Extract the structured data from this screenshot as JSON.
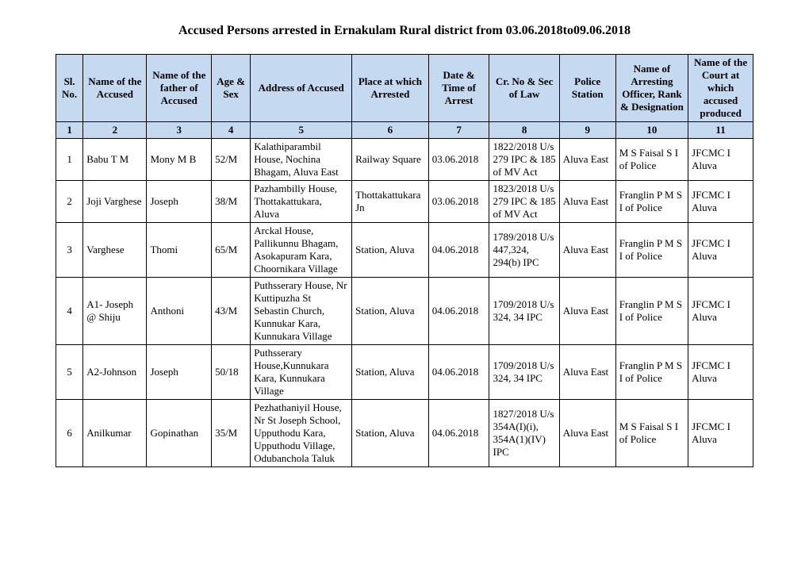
{
  "title": "Accused Persons arrested in    Ernakulam Rural   district from   03.06.2018to09.06.2018",
  "columns": [
    "Sl. No.",
    "Name of the Accused",
    "Name of the father of Accused",
    "Age & Sex",
    "Address of Accused",
    "Place at which Arrested",
    "Date & Time of Arrest",
    "Cr. No & Sec of Law",
    "Police Station",
    "Name of Arresting Officer, Rank & Designation",
    "Name of the Court at which accused produced"
  ],
  "colnums": [
    "1",
    "2",
    "3",
    "4",
    "5",
    "6",
    "7",
    "8",
    "9",
    "10",
    "11"
  ],
  "rows": [
    {
      "sl": "1",
      "name": "Babu T M",
      "father": "Mony M B",
      "age": "52/M",
      "address": "Kalathiparambil House, Nochina Bhagam, Aluva East",
      "place": "Railway Square",
      "date": "03.06.2018",
      "cr": "1822/2018 U/s 279 IPC & 185 of  MV Act",
      "station": "Aluva East",
      "officer": "M S Faisal S I of Police",
      "court": "JFCMC I Aluva"
    },
    {
      "sl": "2",
      "name": "Joji Varghese",
      "father": "Joseph",
      "age": "38/M",
      "address": "Pazhambilly House, Thottakattukara, Aluva",
      "place": "Thottakattukara Jn",
      "date": "03.06.2018",
      "cr": "1823/2018 U/s 279 IPC & 185 of  MV Act",
      "station": "Aluva East",
      "officer": "Franglin P M S I of Police",
      "court": "JFCMC I Aluva"
    },
    {
      "sl": "3",
      "name": "Varghese",
      "father": "Thomi",
      "age": "65/M",
      "address": "Arckal House, Pallikunnu Bhagam, Asokapuram Kara, Choornikara Village",
      "place": "Station, Aluva",
      "date": "04.06.2018",
      "cr": "1789/2018 U/s 447,324, 294(b) IPC",
      "station": "Aluva East",
      "officer": "Franglin P M S I of Police",
      "court": "JFCMC I Aluva"
    },
    {
      "sl": "4",
      "name": "A1- Joseph @ Shiju",
      "father": "Anthoni",
      "age": "43/M",
      "address": "Puthsserary House, Nr Kuttipuzha St Sebastin Church, Kunnukar Kara, Kunnukara Village",
      "place": "Station, Aluva",
      "date": "04.06.2018",
      "cr": "1709/2018 U/s 324, 34 IPC",
      "station": "Aluva East",
      "officer": "Franglin P M S I of Police",
      "court": "JFCMC I Aluva"
    },
    {
      "sl": "5",
      "name": "A2-Johnson",
      "father": "Joseph",
      "age": "50/18",
      "address": "Puthsserary House,Kunnukara Kara, Kunnukara Village",
      "place": "Station, Aluva",
      "date": "04.06.2018",
      "cr": "1709/2018 U/s 324, 34 IPC",
      "station": "Aluva East",
      "officer": "Franglin P M S I of Police",
      "court": "JFCMC I Aluva"
    },
    {
      "sl": "6",
      "name": "Anilkumar",
      "father": "Gopinathan",
      "age": "35/M",
      "address": "Pezhathaniyil House, Nr St Joseph School, Upputhodu Kara, Upputhodu Village, Odubanchola Taluk",
      "place": "Station, Aluva",
      "date": "04.06.2018",
      "cr": "1827/2018 U/s 354A(I)(i), 354A(1)(IV) IPC",
      "station": "Aluva East",
      "officer": "M S Faisal S I of Police",
      "court": "JFCMC I Aluva"
    }
  ],
  "style": {
    "header_bg": "#c5d9f1",
    "border_color": "#000000",
    "background": "#ffffff",
    "title_fontsize": 16,
    "body_fontsize": 13,
    "font_family": "Times New Roman"
  }
}
